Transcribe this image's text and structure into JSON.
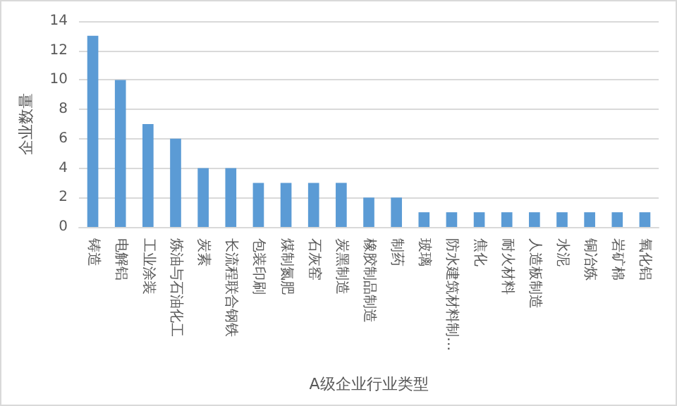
{
  "chart_data": {
    "type": "bar",
    "xlabel": "A级企业行业类型",
    "ylabel": "企业数量",
    "categories": [
      "铸造",
      "电解铝",
      "工业涂装",
      "炼油与石油化工",
      "炭素",
      "长流程联合钢铁",
      "包装印刷",
      "煤制氮肥",
      "石灰窑",
      "炭黑制造",
      "橡胶制品制造",
      "制药",
      "玻璃",
      "防水建筑材料制…",
      "焦化",
      "耐火材料",
      "人造板制造",
      "水泥",
      "铜冶炼",
      "岩矿棉",
      "氧化铝"
    ],
    "values": [
      13,
      10,
      7,
      6,
      4,
      4,
      3,
      3,
      3,
      3,
      2,
      2,
      1,
      1,
      1,
      1,
      1,
      1,
      1,
      1,
      1
    ],
    "color": "#5b9bd5",
    "ylim": [
      0,
      14
    ],
    "yticks": [
      0,
      2,
      4,
      6,
      8,
      10,
      12,
      14
    ],
    "grid": "y"
  }
}
